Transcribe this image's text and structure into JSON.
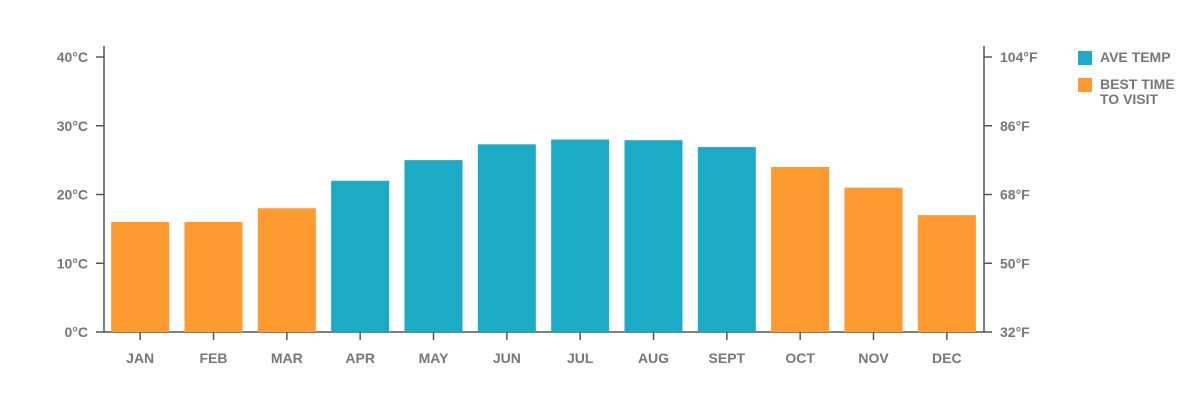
{
  "chart_data": {
    "type": "bar",
    "categories": [
      "JAN",
      "FEB",
      "MAR",
      "APR",
      "MAY",
      "JUN",
      "JUL",
      "AUG",
      "SEPT",
      "OCT",
      "NOV",
      "DEC"
    ],
    "values": [
      16,
      16,
      18,
      22,
      25,
      27.3,
      28,
      27.9,
      26.9,
      24,
      21,
      17
    ],
    "best_time_to_visit": [
      true,
      true,
      true,
      false,
      false,
      false,
      false,
      false,
      false,
      true,
      true,
      true
    ],
    "ylim": [
      0,
      40
    ],
    "y_ticks_left": [
      "0°C",
      "10°C",
      "20°C",
      "30°C",
      "40°C"
    ],
    "y_ticks_right": [
      "32°F",
      "50°F",
      "68°F",
      "86°F",
      "104°F"
    ],
    "grid": false,
    "legend_position": "right",
    "legend": [
      {
        "label": "AVE TEMP",
        "color": "#1cabc4"
      },
      {
        "label": "BEST TIME TO VISIT",
        "color": "#fe9a2f"
      }
    ],
    "colors": {
      "ave_temp": "#1cabc4",
      "best_time": "#fe9a2f",
      "axis": "#555555",
      "text": "#777777"
    }
  }
}
